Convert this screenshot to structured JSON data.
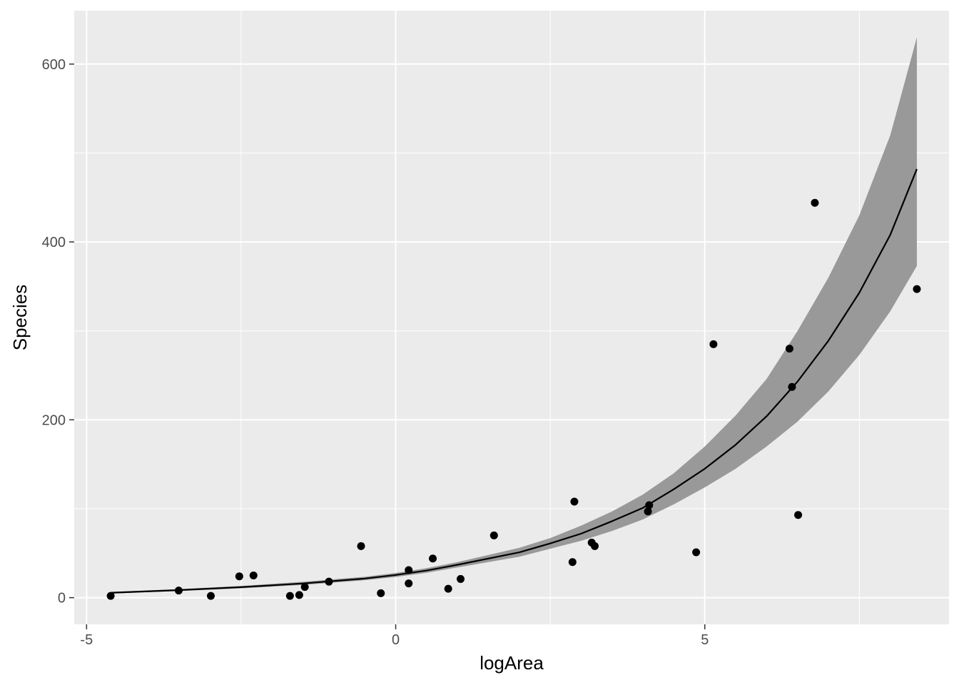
{
  "chart_data": {
    "type": "scatter",
    "title": "",
    "xlabel": "logArea",
    "ylabel": "Species",
    "xlim": [
      -5.2,
      8.95
    ],
    "ylim": [
      -30,
      660
    ],
    "x_ticks": [
      -5,
      0,
      5
    ],
    "x_tick_labels": [
      "-5",
      "0",
      "5"
    ],
    "x_minor": [
      -2.5,
      2.5,
      7.5
    ],
    "y_ticks": [
      0,
      200,
      400,
      600
    ],
    "y_tick_labels": [
      "0",
      "200",
      "400",
      "600"
    ],
    "y_minor": [
      100,
      300,
      500
    ],
    "grid": true,
    "colors": {
      "panel": "#ebebeb",
      "grid": "#ffffff",
      "points": "#000000",
      "fit_line": "#000000",
      "ribbon": "#999999"
    },
    "series": [
      {
        "type": "scatter",
        "points": [
          [
            -4.61,
            2
          ],
          [
            -3.51,
            8
          ],
          [
            -2.99,
            2
          ],
          [
            -2.53,
            24
          ],
          [
            -2.3,
            25
          ],
          [
            -1.71,
            2
          ],
          [
            -1.56,
            3
          ],
          [
            -1.47,
            12
          ],
          [
            -1.08,
            18
          ],
          [
            -0.56,
            58
          ],
          [
            -0.24,
            5
          ],
          [
            0.21,
            31
          ],
          [
            0.21,
            16
          ],
          [
            0.6,
            44
          ],
          [
            0.85,
            10
          ],
          [
            1.05,
            21
          ],
          [
            1.59,
            70
          ],
          [
            2.86,
            40
          ],
          [
            2.89,
            108
          ],
          [
            3.17,
            62
          ],
          [
            3.22,
            58
          ],
          [
            4.08,
            97
          ],
          [
            4.1,
            104
          ],
          [
            4.86,
            51
          ],
          [
            5.14,
            285
          ],
          [
            6.37,
            280
          ],
          [
            6.41,
            237
          ],
          [
            6.51,
            93
          ],
          [
            6.78,
            444
          ],
          [
            8.43,
            347
          ]
        ]
      },
      {
        "type": "line",
        "points": [
          [
            -4.61,
            5.5
          ],
          [
            -3.5,
            8.5
          ],
          [
            -2.5,
            11.8
          ],
          [
            -1.5,
            16.0
          ],
          [
            -0.5,
            21.5
          ],
          [
            0.0,
            25.5
          ],
          [
            0.5,
            30.5
          ],
          [
            1.0,
            37.0
          ],
          [
            2.0,
            51.0
          ],
          [
            2.5,
            61.0
          ],
          [
            3.0,
            72.0
          ],
          [
            3.5,
            86.0
          ],
          [
            4.0,
            101.0
          ],
          [
            4.5,
            122.0
          ],
          [
            5.0,
            145.0
          ],
          [
            5.5,
            172.0
          ],
          [
            6.0,
            204.0
          ],
          [
            6.5,
            243.0
          ],
          [
            7.0,
            289.0
          ],
          [
            7.5,
            343.0
          ],
          [
            8.0,
            408.0
          ],
          [
            8.43,
            482.0
          ]
        ]
      },
      {
        "type": "ribbon",
        "upper": [
          [
            -4.61,
            6.5
          ],
          [
            -3.5,
            9.6
          ],
          [
            -2.5,
            13.2
          ],
          [
            -1.5,
            17.8
          ],
          [
            -0.5,
            23.5
          ],
          [
            0.0,
            27.8
          ],
          [
            0.5,
            33.2
          ],
          [
            1.0,
            40.0
          ],
          [
            2.0,
            56.0
          ],
          [
            2.5,
            67.0
          ],
          [
            3.0,
            81.0
          ],
          [
            3.5,
            97.0
          ],
          [
            4.0,
            116.0
          ],
          [
            4.5,
            140.0
          ],
          [
            5.0,
            170.0
          ],
          [
            5.5,
            205.0
          ],
          [
            6.0,
            246.0
          ],
          [
            6.5,
            300.0
          ],
          [
            7.0,
            360.0
          ],
          [
            7.5,
            430.0
          ],
          [
            8.0,
            520.0
          ],
          [
            8.43,
            630.0
          ]
        ],
        "lower": [
          [
            -4.61,
            4.6
          ],
          [
            -3.5,
            7.5
          ],
          [
            -2.5,
            10.5
          ],
          [
            -1.5,
            14.3
          ],
          [
            -0.5,
            19.6
          ],
          [
            0.0,
            23.3
          ],
          [
            0.5,
            28.0
          ],
          [
            1.0,
            34.0
          ],
          [
            2.0,
            46.0
          ],
          [
            2.5,
            55.0
          ],
          [
            3.0,
            64.0
          ],
          [
            3.5,
            75.0
          ],
          [
            4.0,
            88.0
          ],
          [
            4.5,
            105.0
          ],
          [
            5.0,
            124.0
          ],
          [
            5.5,
            145.0
          ],
          [
            6.0,
            170.0
          ],
          [
            6.5,
            198.0
          ],
          [
            7.0,
            232.0
          ],
          [
            7.5,
            273.0
          ],
          [
            8.0,
            322.0
          ],
          [
            8.43,
            373.0
          ]
        ]
      }
    ]
  }
}
